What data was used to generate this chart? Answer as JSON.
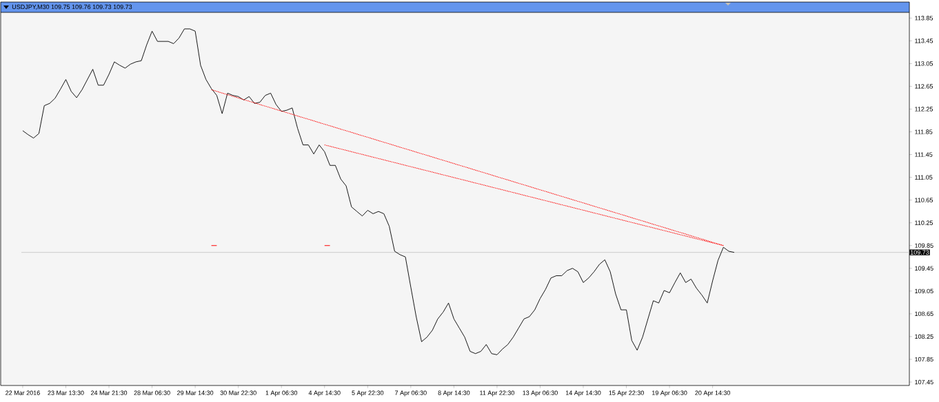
{
  "chart_data": {
    "type": "line",
    "title": "USDJPY,M30  109.75 109.76 109.73 109.73",
    "categories": [
      "22 Mar 2016",
      null,
      null,
      null,
      null,
      null,
      null,
      null,
      "23 Mar 13:30",
      null,
      null,
      null,
      null,
      null,
      null,
      null,
      "24 Mar 21:30",
      null,
      null,
      null,
      null,
      null,
      null,
      null,
      "28 Mar 06:30",
      null,
      null,
      null,
      null,
      null,
      null,
      null,
      "29 Mar 14:30",
      null,
      null,
      null,
      null,
      null,
      null,
      null,
      "30 Mar 22:30",
      null,
      null,
      null,
      null,
      null,
      null,
      null,
      "1 Apr 06:30",
      null,
      null,
      null,
      null,
      null,
      null,
      null,
      "4 Apr 14:30",
      null,
      null,
      null,
      null,
      null,
      null,
      null,
      "5 Apr 22:30",
      null,
      null,
      null,
      null,
      null,
      null,
      null,
      "7 Apr 06:30",
      null,
      null,
      null,
      null,
      null,
      null,
      null,
      "8 Apr 14:30",
      null,
      null,
      null,
      null,
      null,
      null,
      null,
      "11 Apr 22:30",
      null,
      null,
      null,
      null,
      null,
      null,
      null,
      "13 Apr 06:30",
      null,
      null,
      null,
      null,
      null,
      null,
      null,
      "14 Apr 14:30",
      null,
      null,
      null,
      null,
      null,
      null,
      null,
      "15 Apr 22:30",
      null,
      null,
      null,
      null,
      null,
      null,
      null,
      "19 Apr 06:30",
      null,
      null,
      null,
      null,
      null,
      null,
      null,
      "20 Apr 14:30",
      null,
      null,
      null,
      null,
      null,
      null,
      null,
      null,
      null,
      null,
      null,
      null,
      null,
      null,
      null,
      null,
      null,
      null,
      null,
      null,
      null,
      null,
      null,
      null,
      null,
      null,
      null,
      null,
      null,
      null,
      null,
      null,
      null,
      null,
      null,
      null
    ],
    "series": [
      {
        "color": "#000000",
        "values": [
          111.87,
          111.8,
          111.74,
          111.82,
          112.31,
          112.35,
          112.44,
          112.6,
          112.77,
          112.56,
          112.45,
          112.59,
          112.77,
          112.95,
          112.67,
          112.67,
          112.86,
          113.08,
          113.02,
          112.97,
          113.04,
          113.08,
          113.1,
          113.38,
          113.62,
          113.44,
          113.44,
          113.44,
          113.4,
          113.5,
          113.66,
          113.66,
          113.62,
          113.02,
          112.77,
          112.61,
          112.49,
          112.17,
          112.53,
          112.49,
          112.47,
          112.41,
          112.47,
          112.35,
          112.37,
          112.49,
          112.53,
          112.33,
          112.21,
          112.23,
          112.27,
          111.91,
          111.62,
          111.62,
          111.46,
          111.62,
          111.5,
          111.26,
          111.26,
          111.02,
          110.9,
          110.53,
          110.45,
          110.37,
          110.47,
          110.41,
          110.45,
          110.41,
          110.19,
          109.75,
          109.69,
          109.65,
          109.12,
          108.6,
          108.16,
          108.24,
          108.36,
          108.56,
          108.68,
          108.84,
          108.56,
          108.4,
          108.24,
          107.99,
          107.95,
          107.99,
          108.11,
          107.95,
          107.93,
          108.03,
          108.11,
          108.24,
          108.4,
          108.56,
          108.6,
          108.72,
          108.92,
          109.08,
          109.28,
          109.32,
          109.32,
          109.41,
          109.45,
          109.39,
          109.2,
          109.28,
          109.39,
          109.52,
          109.6,
          109.39,
          109.0,
          108.72,
          108.72,
          108.18,
          108.01,
          108.24,
          108.56,
          108.88,
          108.84,
          109.06,
          109.02,
          109.2,
          109.37,
          109.2,
          109.26,
          109.1,
          108.98,
          108.84,
          109.23,
          109.59,
          109.82,
          109.75,
          109.73,
          null,
          null,
          null,
          null,
          null,
          null,
          null,
          null,
          null,
          null,
          null,
          null,
          null,
          null,
          null,
          null,
          null,
          null,
          null,
          null,
          null,
          null,
          null,
          null,
          null,
          null,
          null,
          null,
          null,
          null,
          null,
          null
        ]
      },
      {
        "type": "line",
        "color": "#ff0000",
        "line_style": "dashed",
        "values": [
          null,
          null,
          null,
          null,
          null,
          null,
          null,
          null,
          null,
          null,
          null,
          null,
          null,
          null,
          null,
          null,
          null,
          null,
          null,
          null,
          null,
          null,
          null,
          null,
          null,
          null,
          null,
          null,
          null,
          null,
          null,
          null,
          null,
          null,
          null,
          112.59,
          null,
          null,
          null,
          null,
          null,
          null,
          null,
          null,
          null,
          null,
          null,
          null,
          null,
          null,
          null,
          null,
          null,
          null,
          null,
          null,
          null,
          null,
          null,
          null,
          null,
          null,
          null,
          null,
          null,
          null,
          null,
          null,
          null,
          null,
          null,
          null,
          null,
          null,
          null,
          null,
          null,
          null,
          null,
          null,
          null,
          null,
          null,
          null,
          null,
          null,
          null,
          null,
          null,
          null,
          null,
          null,
          null,
          null,
          null,
          null,
          null,
          null,
          null,
          null,
          null,
          null,
          null,
          null,
          null,
          null,
          null,
          null,
          null,
          null,
          null,
          null,
          null,
          null,
          null,
          null,
          null,
          null,
          null,
          null,
          null,
          null,
          null,
          null,
          null,
          null,
          null,
          null,
          null,
          null,
          109.85,
          null,
          null,
          null,
          null,
          null,
          null,
          null,
          null,
          null,
          null,
          null,
          null,
          null,
          null,
          null,
          null,
          null,
          null,
          null,
          null,
          null,
          null,
          null,
          null,
          null,
          null,
          null,
          null,
          null,
          null,
          null,
          null,
          null,
          null
        ]
      },
      {
        "type": "line",
        "color": "#ff0000",
        "line_style": "dashed",
        "values": [
          null,
          null,
          null,
          null,
          null,
          null,
          null,
          null,
          null,
          null,
          null,
          null,
          null,
          null,
          null,
          null,
          null,
          null,
          null,
          null,
          null,
          null,
          null,
          null,
          null,
          null,
          null,
          null,
          null,
          null,
          null,
          null,
          null,
          null,
          null,
          null,
          null,
          null,
          null,
          null,
          null,
          null,
          null,
          null,
          null,
          null,
          null,
          null,
          null,
          null,
          null,
          null,
          null,
          null,
          null,
          null,
          111.62,
          null,
          null,
          null,
          null,
          null,
          null,
          null,
          null,
          null,
          null,
          null,
          null,
          null,
          null,
          null,
          null,
          null,
          null,
          null,
          null,
          null,
          null,
          null,
          null,
          null,
          null,
          null,
          null,
          null,
          null,
          null,
          null,
          null,
          null,
          null,
          null,
          null,
          null,
          null,
          null,
          null,
          null,
          null,
          null,
          null,
          null,
          null,
          null,
          null,
          null,
          null,
          null,
          null,
          null,
          null,
          null,
          null,
          null,
          null,
          null,
          null,
          null,
          null,
          null,
          null,
          null,
          null,
          null,
          null,
          null,
          null,
          null,
          null,
          109.85,
          null,
          null,
          null,
          null,
          null,
          null,
          null,
          null,
          null,
          null,
          null,
          null,
          null,
          null,
          null,
          null,
          null,
          null,
          null,
          null,
          null,
          null,
          null,
          null,
          null,
          null,
          null,
          null,
          null,
          null,
          null,
          null,
          null,
          null
        ]
      },
      {
        "type": "line",
        "color": "#ff0000",
        "values": [
          null,
          null,
          null,
          null,
          null,
          null,
          null,
          null,
          null,
          null,
          null,
          null,
          null,
          null,
          null,
          null,
          null,
          null,
          null,
          null,
          null,
          null,
          null,
          null,
          null,
          null,
          null,
          null,
          null,
          null,
          null,
          null,
          null,
          null,
          null,
          109.85,
          109.85,
          null,
          null,
          null,
          null,
          null,
          null,
          null,
          null,
          null,
          null,
          null,
          null,
          null,
          null,
          null,
          null,
          null,
          null,
          null,
          null,
          null,
          null,
          null,
          null,
          null,
          null,
          null,
          null,
          null,
          null,
          null,
          null,
          null,
          null,
          null,
          null,
          null,
          null,
          null,
          null,
          null,
          null,
          null,
          null,
          null,
          null,
          null,
          null,
          null,
          null,
          null,
          null,
          null,
          null,
          null,
          null,
          null,
          null,
          null,
          null,
          null,
          null,
          null,
          null,
          null,
          null,
          null,
          null,
          null,
          null,
          null,
          null,
          null,
          null,
          null,
          null,
          null,
          null,
          null,
          null,
          null,
          null,
          null,
          null,
          null,
          null,
          null,
          null,
          null,
          null,
          null,
          null,
          null,
          null,
          null,
          null,
          null,
          null,
          null,
          null,
          null,
          null,
          null,
          null,
          null,
          null,
          null,
          null,
          null,
          null,
          null,
          null,
          null,
          null,
          null,
          null,
          null,
          null,
          null,
          null,
          null,
          null,
          null,
          null,
          null,
          null,
          null,
          null
        ]
      },
      {
        "type": "line",
        "color": "#ff0000",
        "values": [
          null,
          null,
          null,
          null,
          null,
          null,
          null,
          null,
          null,
          null,
          null,
          null,
          null,
          null,
          null,
          null,
          null,
          null,
          null,
          null,
          null,
          null,
          null,
          null,
          null,
          null,
          null,
          null,
          null,
          null,
          null,
          null,
          null,
          null,
          null,
          null,
          null,
          null,
          null,
          null,
          null,
          null,
          null,
          null,
          null,
          null,
          null,
          null,
          null,
          null,
          null,
          null,
          null,
          null,
          null,
          null,
          109.85,
          109.85,
          null,
          null,
          null,
          null,
          null,
          null,
          null,
          null,
          null,
          null,
          null,
          null,
          null,
          null,
          null,
          null,
          null,
          null,
          null,
          null,
          null,
          null,
          null,
          null,
          null,
          null,
          null,
          null,
          null,
          null,
          null,
          null,
          null,
          null,
          null,
          null,
          null,
          null,
          null,
          null,
          null,
          null,
          null,
          null,
          null,
          null,
          null,
          null,
          null,
          null,
          null,
          null,
          null,
          null,
          null,
          null,
          null,
          null,
          null,
          null,
          null,
          null,
          null,
          null,
          null,
          null,
          null,
          null,
          null,
          null,
          null,
          null,
          null,
          null,
          null,
          null,
          null,
          null,
          null,
          null,
          null,
          null,
          null,
          null,
          null,
          null,
          null,
          null,
          null,
          null,
          null,
          null,
          null,
          null,
          null,
          null,
          null,
          null,
          null,
          null,
          null,
          null,
          null,
          null,
          null,
          null,
          null
        ]
      }
    ],
    "ylim": [
      107.39,
      113.95
    ],
    "yticks": [
      113.85,
      113.45,
      113.05,
      112.65,
      112.25,
      111.85,
      111.45,
      111.05,
      110.65,
      110.25,
      109.85,
      109.45,
      109.05,
      108.65,
      108.25,
      107.85,
      107.45
    ],
    "ref_lines": [
      {
        "axis": "y",
        "value": 109.73,
        "label": "109.73",
        "color": "#c0c0c0"
      }
    ]
  }
}
